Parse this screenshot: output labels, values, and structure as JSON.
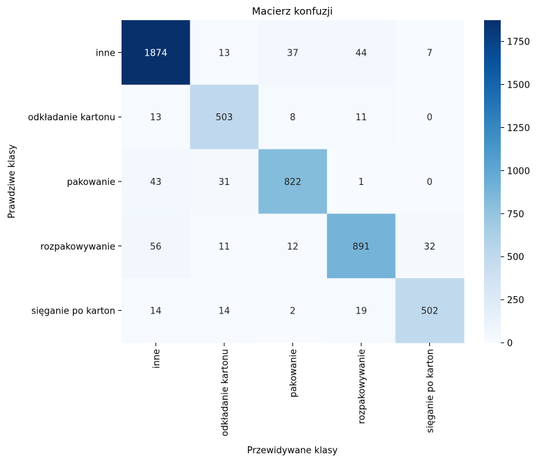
{
  "chart_data": {
    "type": "heatmap",
    "title": "Macierz konfuzji",
    "xlabel": "Przewidywane klasy",
    "ylabel": "Prawdziwe klasy",
    "x_categories": [
      "inne",
      "odkładanie kartonu",
      "pakowanie",
      "rozpakowywanie",
      "sięganie po karton"
    ],
    "y_categories": [
      "inne",
      "odkładanie kartonu",
      "pakowanie",
      "rozpakowywanie",
      "sięganie po karton"
    ],
    "values": [
      [
        1874,
        13,
        37,
        44,
        7
      ],
      [
        13,
        503,
        8,
        11,
        0
      ],
      [
        43,
        31,
        822,
        1,
        0
      ],
      [
        56,
        11,
        12,
        891,
        32
      ],
      [
        14,
        14,
        2,
        19,
        502
      ]
    ],
    "colormap": "Blues",
    "vmin": 0,
    "vmax": 1874,
    "colorbar_ticks": [
      0,
      250,
      500,
      750,
      1000,
      1250,
      1500,
      1750
    ],
    "grid": false,
    "legend": "colorbar-right"
  }
}
